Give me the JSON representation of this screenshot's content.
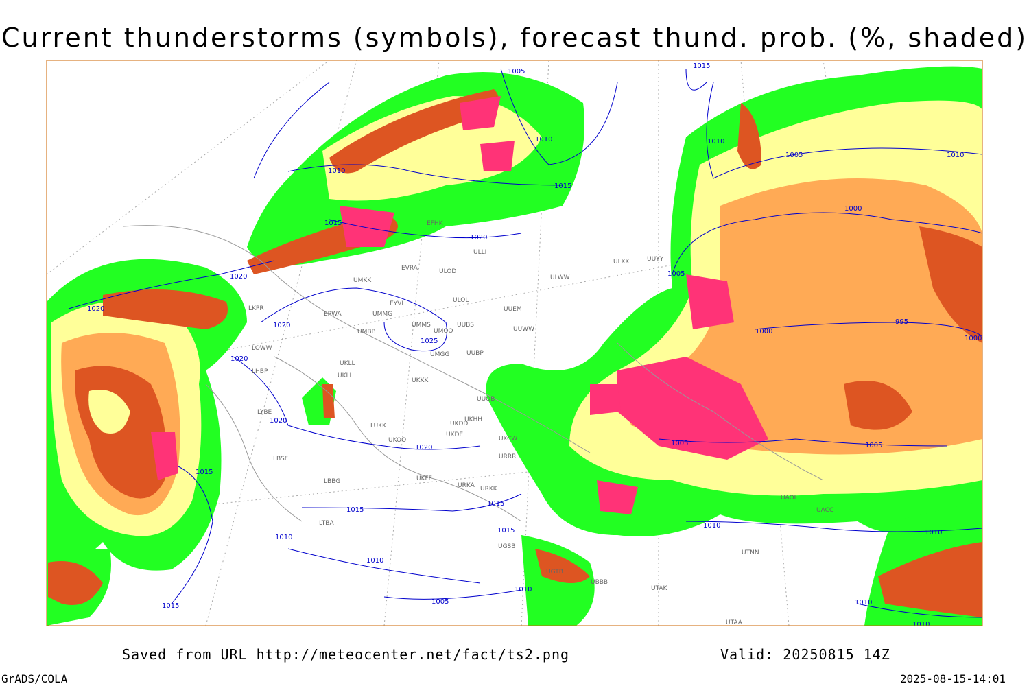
{
  "title": "Current thunderstorms (symbols), forecast thund. prob. (%, shaded)",
  "footer": {
    "source": "Saved from URL http://meteocenter.net/fact/ts2.png",
    "valid": "Valid: 20250815 14Z",
    "software": "GrADS/COLA",
    "timestamp": "2025-08-15-14:01"
  },
  "isobars": [
    "1005",
    "1015",
    "1010",
    "1010",
    "1015",
    "1015",
    "1020",
    "1020",
    "1020",
    "1020",
    "1025",
    "1020",
    "1020",
    "1020",
    "1015",
    "1015",
    "1015",
    "1015",
    "1010",
    "1010",
    "1010",
    "1005",
    "1015",
    "1010",
    "1005",
    "1010",
    "1000",
    "995",
    "1000",
    "1005",
    "1000",
    "1005",
    "1005",
    "1010",
    "1010",
    "1010",
    "1010"
  ],
  "stations": [
    "EFHK",
    "ULLI",
    "ULOL",
    "ULOD",
    "EVRA",
    "UMKK",
    "EYVI",
    "UMMG",
    "EPWA",
    "UMMS",
    "UMOO",
    "UUBS",
    "UUEM",
    "UUWW",
    "ULWW",
    "ULKK",
    "UUYY",
    "UMBB",
    "UMGG",
    "UUBP",
    "UKLL",
    "UKLI",
    "UKKK",
    "UUOB",
    "LHBP",
    "LOWW",
    "LKPR",
    "LYBE",
    "LUKK",
    "UKHH",
    "UKDD",
    "UKDE",
    "UKOO",
    "UKCW",
    "URRR",
    "LBSF",
    "UKFF",
    "LBBG",
    "URKA",
    "URKK",
    "LTBA",
    "UGSB",
    "UGTB",
    "UBBB",
    "UTAK",
    "UTAA",
    "UTNN",
    "UAOL",
    "UACC"
  ]
}
